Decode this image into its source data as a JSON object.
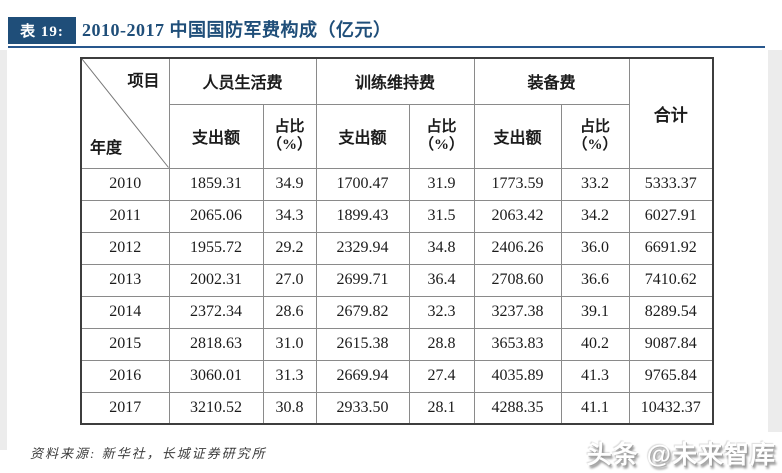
{
  "header": {
    "badge": "表 19:",
    "title": "2010-2017 中国国防军费构成（亿元）",
    "accent_color": "#1F4E79"
  },
  "table": {
    "corner_top": "项目",
    "corner_bottom": "年度",
    "groups": [
      "人员生活费",
      "训练维持费",
      "装备费"
    ],
    "sub_amount": "支出额",
    "sub_share_line1": "占比",
    "sub_share_line2": "（%）",
    "total_label": "合计",
    "rows": [
      {
        "year": "2010",
        "cells": [
          "1859.31",
          "34.9",
          "1700.47",
          "31.9",
          "1773.59",
          "33.2",
          "5333.37"
        ]
      },
      {
        "year": "2011",
        "cells": [
          "2065.06",
          "34.3",
          "1899.43",
          "31.5",
          "2063.42",
          "34.2",
          "6027.91"
        ]
      },
      {
        "year": "2012",
        "cells": [
          "1955.72",
          "29.2",
          "2329.94",
          "34.8",
          "2406.26",
          "36.0",
          "6691.92"
        ]
      },
      {
        "year": "2013",
        "cells": [
          "2002.31",
          "27.0",
          "2699.71",
          "36.4",
          "2708.60",
          "36.6",
          "7410.62"
        ]
      },
      {
        "year": "2014",
        "cells": [
          "2372.34",
          "28.6",
          "2679.82",
          "32.3",
          "3237.38",
          "39.1",
          "8289.54"
        ]
      },
      {
        "year": "2015",
        "cells": [
          "2818.63",
          "31.0",
          "2615.38",
          "28.8",
          "3653.83",
          "40.2",
          "9087.84"
        ]
      },
      {
        "year": "2016",
        "cells": [
          "3060.01",
          "31.3",
          "2669.94",
          "27.4",
          "4035.89",
          "41.3",
          "9765.84"
        ]
      },
      {
        "year": "2017",
        "cells": [
          "3210.52",
          "30.8",
          "2933.50",
          "28.1",
          "4288.35",
          "41.1",
          "10432.37"
        ]
      }
    ]
  },
  "footer": {
    "source": "资料来源: 新华社，长城证券研究所",
    "watermark": "头条 @未来智库"
  },
  "chart_data": {
    "type": "table",
    "title": "2010-2017 中国国防军费构成（亿元）",
    "columns": [
      "年度",
      "人员生活费 支出额",
      "人员生活费 占比（%）",
      "训练维持费 支出额",
      "训练维持费 占比（%）",
      "装备费 支出额",
      "装备费 占比（%）",
      "合计"
    ],
    "rows": [
      [
        "2010",
        1859.31,
        34.9,
        1700.47,
        31.9,
        1773.59,
        33.2,
        5333.37
      ],
      [
        "2011",
        2065.06,
        34.3,
        1899.43,
        31.5,
        2063.42,
        34.2,
        6027.91
      ],
      [
        "2012",
        1955.72,
        29.2,
        2329.94,
        34.8,
        2406.26,
        36.0,
        6691.92
      ],
      [
        "2013",
        2002.31,
        27.0,
        2699.71,
        36.4,
        2708.6,
        36.6,
        7410.62
      ],
      [
        "2014",
        2372.34,
        28.6,
        2679.82,
        32.3,
        3237.38,
        39.1,
        8289.54
      ],
      [
        "2015",
        2818.63,
        31.0,
        2615.38,
        28.8,
        3653.83,
        40.2,
        9087.84
      ],
      [
        "2016",
        3060.01,
        31.3,
        2669.94,
        27.4,
        4035.89,
        41.3,
        9765.84
      ],
      [
        "2017",
        3210.52,
        30.8,
        2933.5,
        28.1,
        4288.35,
        41.1,
        10432.37
      ]
    ]
  }
}
